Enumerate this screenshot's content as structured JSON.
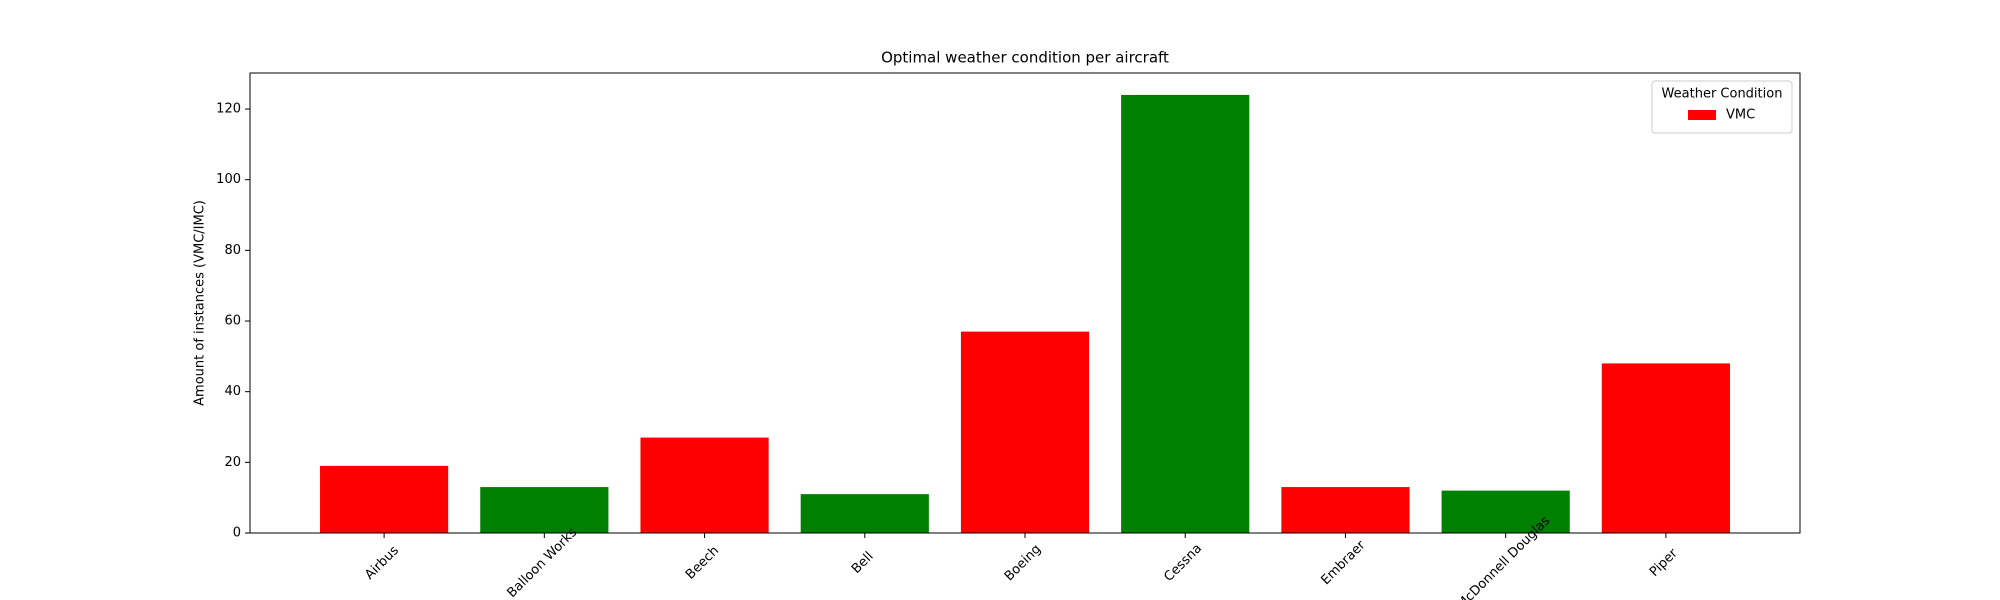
{
  "chart_data": {
    "type": "bar",
    "title": "Optimal weather condition per aircraft",
    "y_label": "Amount of instances (VMC/IMC)",
    "categories": [
      "Airbus",
      "Balloon Works",
      "Beech",
      "Bell",
      "Boeing",
      "Cessna",
      "Embraer",
      "McDonnell Douglas",
      "Piper"
    ],
    "values": [
      19,
      13,
      27,
      11,
      57,
      124,
      13,
      12,
      48
    ],
    "colors": [
      "#ff0000",
      "#008000",
      "#ff0000",
      "#008000",
      "#ff0000",
      "#008000",
      "#ff0000",
      "#008000",
      "#ff0000"
    ],
    "ylim": [
      0,
      130.2
    ],
    "yticks": [
      0,
      20,
      40,
      60,
      80,
      100,
      120
    ],
    "legend": {
      "title": "Weather Condition",
      "position": "upper right",
      "entries": [
        {
          "name": "VMC",
          "color": "#ff0000"
        }
      ]
    }
  }
}
